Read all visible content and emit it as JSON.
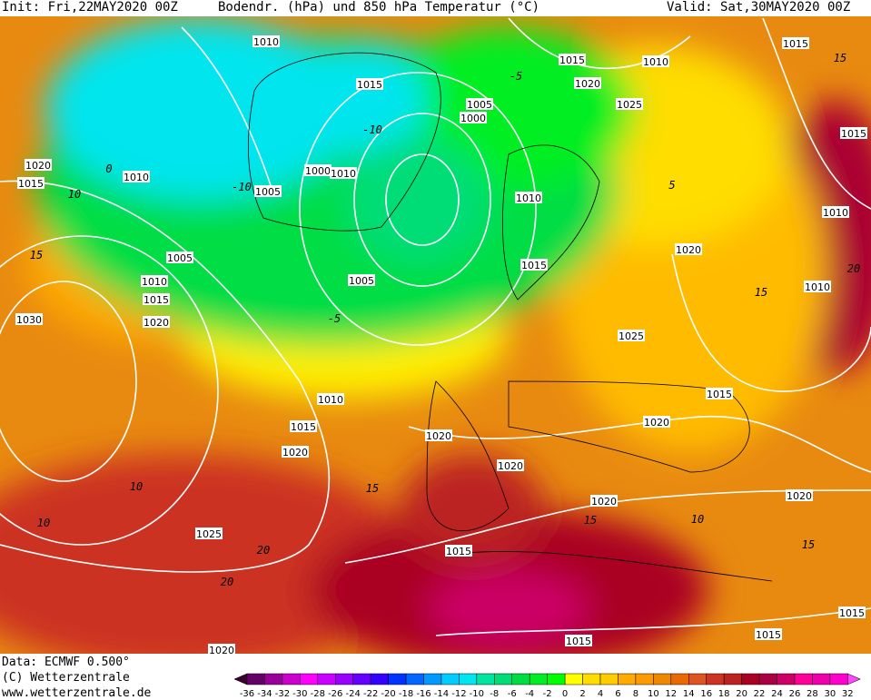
{
  "header": {
    "init": "Init: Fri,22MAY2020 00Z",
    "title": "Bodendr. (hPa) und 850 hPa Temperatur (°C)",
    "valid": "Valid: Sat,30MAY2020 00Z"
  },
  "footer": {
    "data": "Data: ECMWF  0.500°",
    "copyright": "(C) Wetterzentrale",
    "url": "www.wetterzentrale.de"
  },
  "map": {
    "isobar_labels": [
      "1010",
      "1015",
      "1015",
      "1010",
      "1020",
      "1025",
      "1005",
      "1000",
      "1015",
      "1015",
      "1020",
      "1010",
      "1015",
      "1005",
      "1000",
      "1010",
      "1010",
      "1010",
      "1005",
      "1020",
      "1015",
      "1010",
      "1005",
      "1015",
      "1010",
      "1030",
      "1020",
      "1025",
      "1015",
      "1010",
      "1020",
      "1015",
      "1020",
      "1020",
      "1020",
      "1020",
      "1020",
      "1025",
      "1015",
      "1015",
      "1015",
      "1015",
      "1020"
    ],
    "temperature_labels": [
      "-5",
      "-10",
      "-10",
      "0",
      "-5",
      "5",
      "10",
      "15",
      "10",
      "10",
      "15",
      "15",
      "20",
      "20",
      "15",
      "15",
      "15",
      "20",
      "10"
    ]
  },
  "colorbar": {
    "labels": [
      "-36",
      "-34",
      "-32",
      "-30",
      "-28",
      "-26",
      "-24",
      "-22",
      "-20",
      "-18",
      "-16",
      "-14",
      "-12",
      "-10",
      "-8",
      "-6",
      "-4",
      "-2",
      "0",
      "2",
      "4",
      "6",
      "8",
      "10",
      "12",
      "14",
      "16",
      "18",
      "20",
      "22",
      "24",
      "26",
      "28",
      "30",
      "32"
    ],
    "colors": [
      "#660066",
      "#990099",
      "#cc00cc",
      "#ff00ff",
      "#cc00ff",
      "#9900ff",
      "#6600ff",
      "#3300ff",
      "#0033ff",
      "#0066ff",
      "#0099ff",
      "#00ccff",
      "#00e5ee",
      "#00e5a0",
      "#00dd77",
      "#00dd44",
      "#00ee22",
      "#00ff00",
      "#ffff00",
      "#ffdd00",
      "#ffcc00",
      "#ffaa00",
      "#ff9900",
      "#ee8800",
      "#e86a00",
      "#dd5522",
      "#cc3322",
      "#bb2222",
      "#aa0022",
      "#aa0044",
      "#cc0066",
      "#ff0099",
      "#ee00aa",
      "#ff00cc"
    ],
    "low_color": "#3a0030",
    "high_color": "#ff44ff"
  }
}
